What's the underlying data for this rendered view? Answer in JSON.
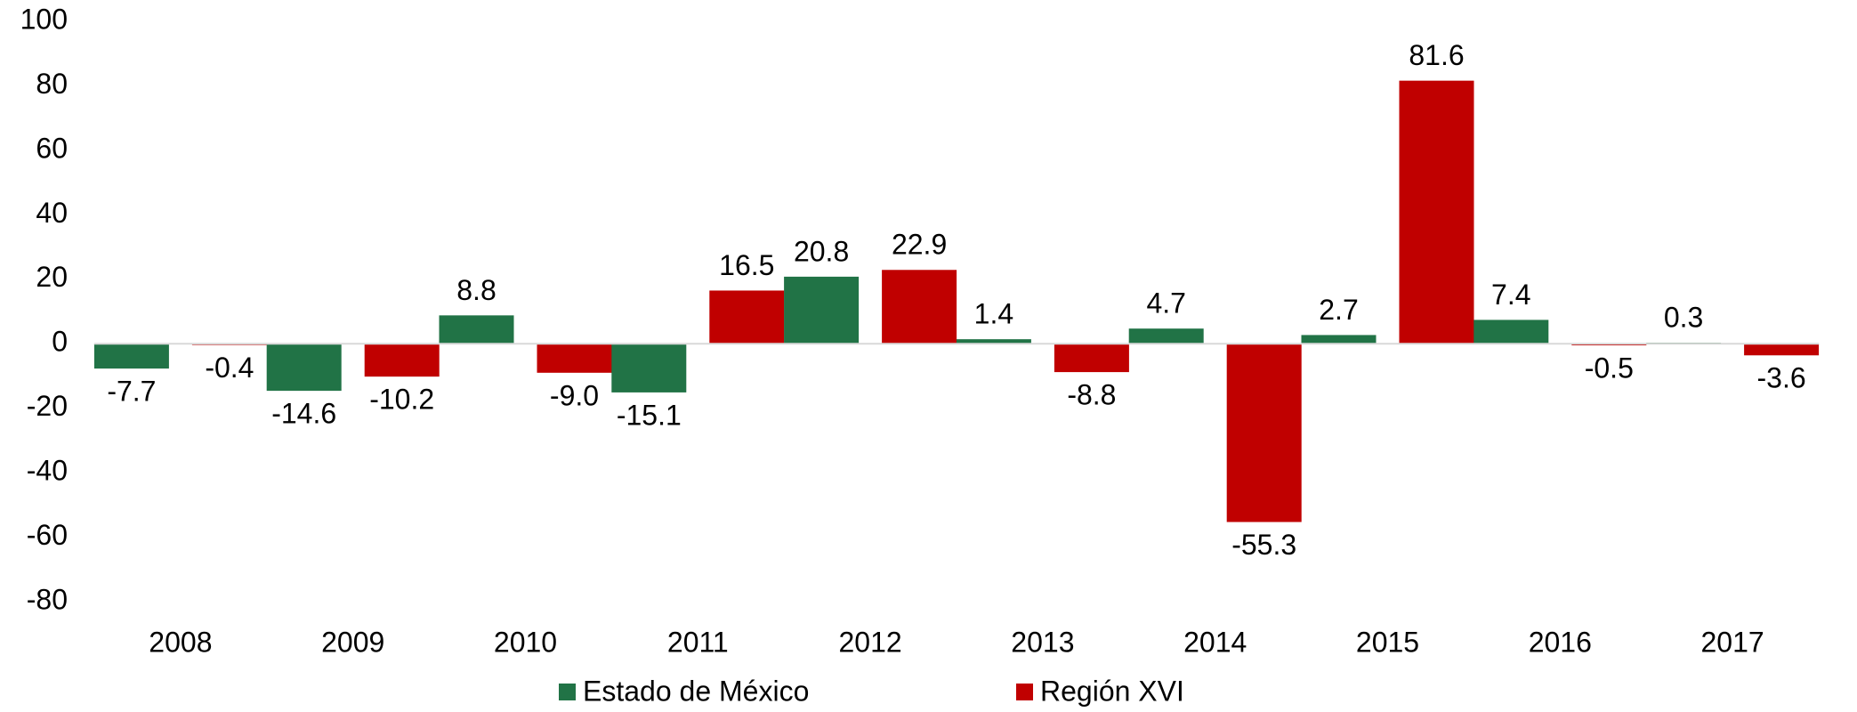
{
  "chart_data": {
    "type": "bar",
    "categories": [
      "2008",
      "2009",
      "2010",
      "2011",
      "2012",
      "2013",
      "2014",
      "2015",
      "2016",
      "2017"
    ],
    "series": [
      {
        "name": "Estado de México",
        "color": "#217346",
        "values": [
          -7.7,
          -14.6,
          8.8,
          -15.1,
          20.8,
          1.4,
          4.7,
          2.7,
          7.4,
          0.3
        ],
        "value_labels": [
          "-7.7",
          "-14.6",
          "8.8",
          "-15.1",
          "20.8",
          "1.4",
          "4.7",
          "2.7",
          "7.4",
          "0.3"
        ]
      },
      {
        "name": "Región XVI",
        "color": "#c00000",
        "values": [
          -0.4,
          -10.2,
          -9.0,
          16.5,
          22.9,
          -8.8,
          -55.3,
          81.6,
          -0.5,
          -3.6
        ],
        "value_labels": [
          "-0.4",
          "-10.2",
          "-9.0",
          "16.5",
          "22.9",
          "-8.8",
          "-55.3",
          "81.6",
          "-0.5",
          "-3.6"
        ]
      }
    ],
    "ylim": [
      -80,
      100
    ],
    "yticks": [
      -80,
      -60,
      -40,
      -20,
      0,
      20,
      40,
      60,
      80,
      100
    ],
    "grid": false,
    "legend": "bottom"
  }
}
